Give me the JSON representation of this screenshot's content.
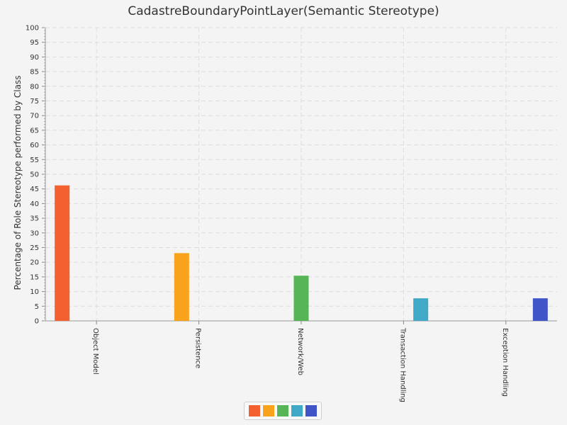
{
  "chart_data": {
    "type": "bar",
    "title": "CadastreBoundaryPointLayer(Semantic Stereotype)",
    "xlabel": "",
    "ylabel": "Percentage of Role Stereotype performed by Class",
    "ylim": [
      0,
      100
    ],
    "ytick_step": 5,
    "grid": true,
    "legend_position": "bottom",
    "categories": [
      "Object Model",
      "Persistence",
      "Network/Web",
      "Transaction Handling",
      "Exception Handling"
    ],
    "series": [
      {
        "color": "#f2612f",
        "values": [
          46.2,
          0,
          0,
          0,
          0
        ]
      },
      {
        "color": "#f9a21b",
        "values": [
          0,
          23.1,
          0,
          0,
          0
        ]
      },
      {
        "color": "#56b556",
        "values": [
          0,
          0,
          15.4,
          0,
          0
        ]
      },
      {
        "color": "#40a9c8",
        "values": [
          0,
          0,
          0,
          7.7,
          0
        ]
      },
      {
        "color": "#4056c8",
        "values": [
          0,
          0,
          0,
          0,
          7.7
        ]
      }
    ]
  }
}
